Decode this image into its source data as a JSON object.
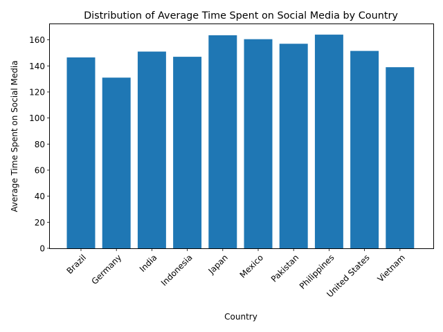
{
  "chart_data": {
    "type": "bar",
    "title": "Distribution of Average Time Spent on Social Media by Country",
    "xlabel": "Country",
    "ylabel": "Average Time Spent on Social Media",
    "categories": [
      "Brazil",
      "Germany",
      "India",
      "Indonesia",
      "Japan",
      "Mexico",
      "Pakistan",
      "Philippines",
      "United States",
      "Vietnam"
    ],
    "values": [
      146.5,
      131,
      151,
      147,
      163.5,
      160.5,
      157,
      164,
      151.5,
      139
    ],
    "ylim": [
      0,
      172
    ],
    "yticks": [
      0,
      20,
      40,
      60,
      80,
      100,
      120,
      140,
      160
    ],
    "bar_color": "#1f77b4",
    "grid": false,
    "legend": "none"
  }
}
